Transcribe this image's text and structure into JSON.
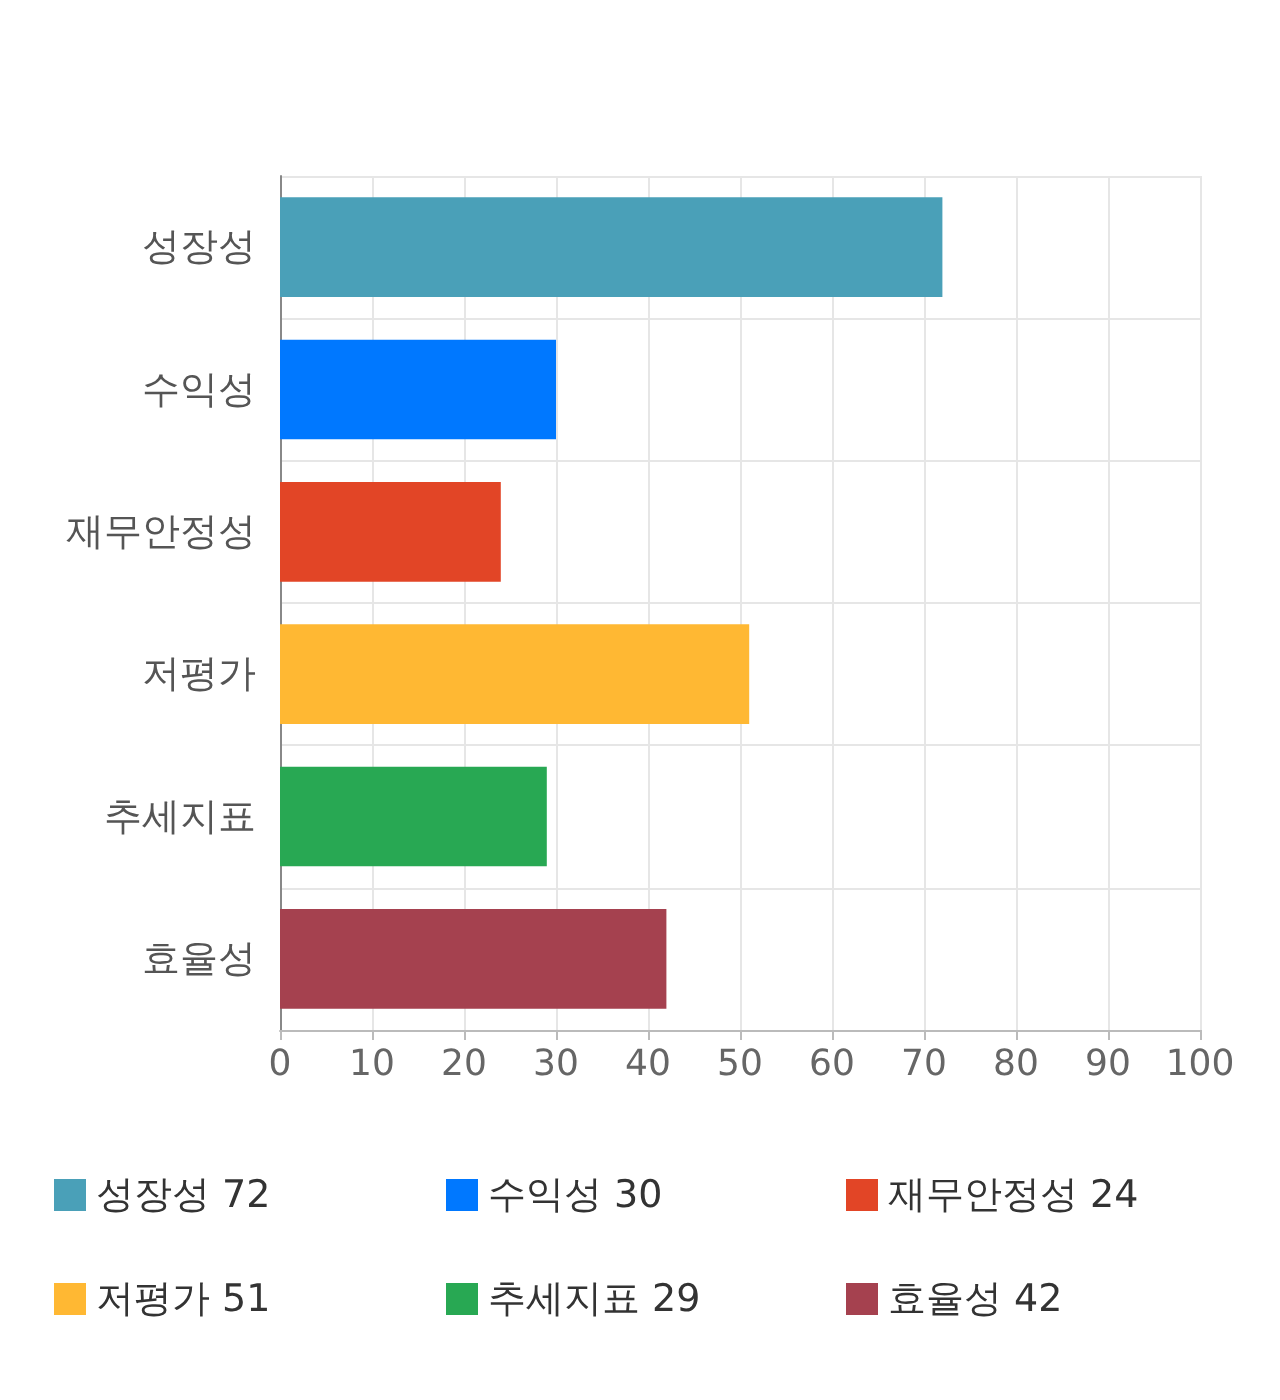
{
  "chart_data": {
    "type": "bar",
    "orientation": "horizontal",
    "stacked": true,
    "categories": [
      "성장성",
      "수익성",
      "재무안정성",
      "저평가",
      "추세지표",
      "효율성"
    ],
    "series": [
      {
        "name": "성장성 72",
        "color": "#4aa0b8",
        "values": [
          72,
          null,
          null,
          null,
          null,
          null
        ]
      },
      {
        "name": "수익성 30",
        "color": "#0078ff",
        "values": [
          null,
          30,
          null,
          null,
          null,
          null
        ]
      },
      {
        "name": "재무안정성 24",
        "color": "#e24526",
        "values": [
          null,
          null,
          24,
          null,
          null,
          null
        ]
      },
      {
        "name": "저평가 51",
        "color": "#ffb833",
        "values": [
          null,
          null,
          null,
          51,
          null,
          null
        ]
      },
      {
        "name": "추세지표 29",
        "color": "#28a853",
        "values": [
          null,
          null,
          null,
          null,
          29,
          null
        ]
      },
      {
        "name": "효율성 42",
        "color": "#a5414f",
        "values": [
          null,
          null,
          null,
          null,
          null,
          42
        ]
      }
    ],
    "xlim": [
      0,
      100
    ],
    "xticks": [
      0,
      10,
      20,
      30,
      40,
      50,
      60,
      70,
      80,
      90,
      100
    ],
    "grid": true,
    "legend": "bottom"
  }
}
